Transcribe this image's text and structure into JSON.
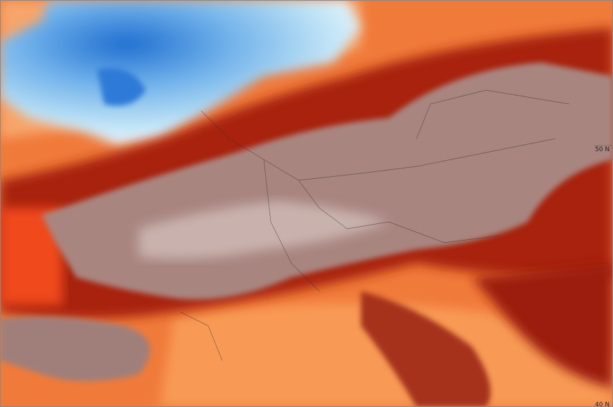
{
  "map": {
    "lat_labels": {
      "north": "50 N",
      "south": "40 N"
    }
  }
}
